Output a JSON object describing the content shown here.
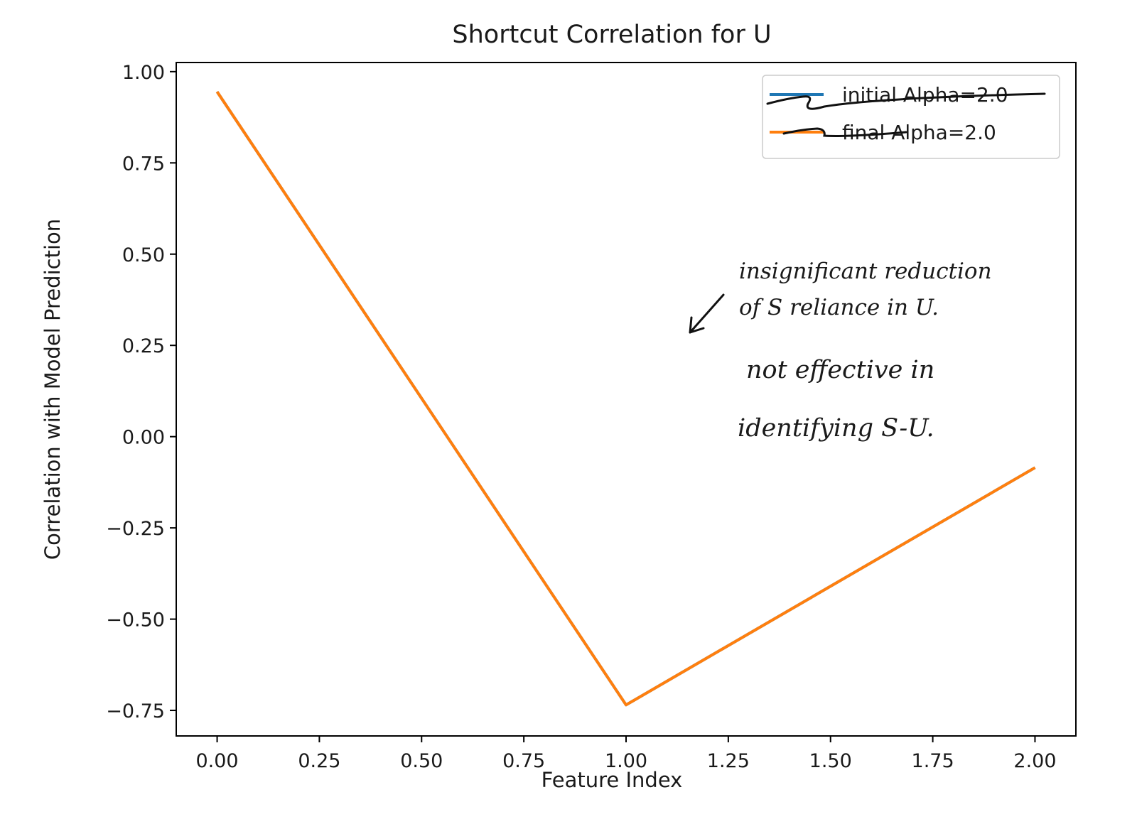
{
  "chart_data": {
    "type": "line",
    "title": "Shortcut Correlation for U",
    "xlabel": "Feature Index",
    "ylabel": "Correlation with Model Prediction",
    "x": [
      0,
      1,
      2
    ],
    "series": [
      {
        "name": "initial Alpha=2.0",
        "color": "#1f77b4",
        "values": [
          0.945,
          -0.735,
          -0.085
        ]
      },
      {
        "name": "final Alpha=2.0",
        "color": "#ff7f0e",
        "values": [
          0.945,
          -0.735,
          -0.085
        ]
      }
    ],
    "xlim": [
      -0.1,
      2.1
    ],
    "ylim": [
      -0.82,
      1.025
    ],
    "xticks": [
      0,
      0.25,
      0.5,
      0.75,
      1,
      1.25,
      1.5,
      1.75,
      2
    ],
    "xtick_labels": [
      "0.00",
      "0.25",
      "0.50",
      "0.75",
      "1.00",
      "1.25",
      "1.50",
      "1.75",
      "2.00"
    ],
    "yticks": [
      1,
      0.75,
      0.5,
      0.25,
      0,
      -0.25,
      -0.5,
      -0.75
    ],
    "ytick_labels": [
      "1.00",
      "0.75",
      "0.50",
      "0.25",
      "0.00",
      "−0.25",
      "−0.50",
      "−0.75"
    ],
    "grid": false,
    "legend_position": "top-right",
    "annotations": [
      {
        "text_lines": [
          "insignificant reduction",
          "of S reliance in U."
        ],
        "color": "#111111"
      },
      {
        "text_lines": [
          "not effective in",
          "identifying S-U."
        ],
        "color": "#7a1450"
      }
    ]
  }
}
